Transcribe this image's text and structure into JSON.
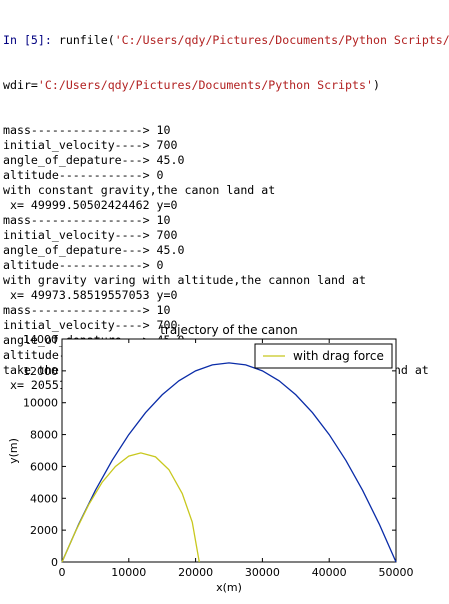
{
  "console": {
    "input": {
      "prompt": "In [5]:",
      "call": "runfile(",
      "path": "'C:/Users/qdy/Pictures/Documents/Python Scripts/",
      "wdir_key": "wdir=",
      "wdir": "'C:/Users/qdy/Pictures/Documents/Python Scripts'",
      "close": ")"
    },
    "output": [
      "mass----------------> 10",
      "initial_velocity----> 700",
      "angle_of_depature---> 45.0",
      "altitude------------> 0",
      "with constant gravity,the canon land at",
      " x= 49999.50502424462 y=0",
      "mass----------------> 10",
      "initial_velocity----> 700",
      "angle_of_depature---> 45.0",
      "altitude------------> 0",
      "with gravity varing with altitude,the cannon land at",
      " x= 49973.58519557053 y=0",
      "mass----------------> 10",
      "initial_velocity----> 700",
      "angle_of_depature---> 45.0",
      "altitude------------> 0",
      "take the air drag force into consideration,the cannon land at",
      " x= 20551.22130317152 y=0"
    ]
  },
  "chart_data": {
    "type": "line",
    "title": "trajectory of the canon",
    "x_label": "x(m)",
    "y_label": "y(m)",
    "xlim": [
      0,
      50000
    ],
    "xticks": [
      0,
      10000,
      20000,
      30000,
      40000,
      50000
    ],
    "ylim": [
      0,
      14000
    ],
    "yticks": [
      0,
      2000,
      4000,
      6000,
      8000,
      10000,
      12000,
      14000
    ],
    "legend": "upper right",
    "series": [
      {
        "color": "#0a2ca8",
        "x": [
          0,
          2500,
          5000,
          7500,
          10000,
          12500,
          15000,
          17500,
          20000,
          22500,
          25000,
          27500,
          30000,
          32500,
          35000,
          37500,
          40000,
          42500,
          45000,
          47500,
          50000
        ],
        "values": [
          0,
          2375,
          4500,
          6375,
          8000,
          9375,
          10500,
          11375,
          12000,
          12375,
          12500,
          12375,
          12000,
          11375,
          10500,
          9375,
          8000,
          6375,
          4500,
          2375,
          0
        ]
      },
      {
        "name": "with drag force",
        "color": "#c8c81e",
        "x": [
          0,
          2000,
          4000,
          6000,
          8000,
          10000,
          11800,
          14000,
          16000,
          18000,
          19500,
          20551
        ],
        "values": [
          0,
          1900,
          3600,
          5000,
          6000,
          6650,
          6850,
          6600,
          5800,
          4300,
          2500,
          0
        ]
      }
    ]
  }
}
